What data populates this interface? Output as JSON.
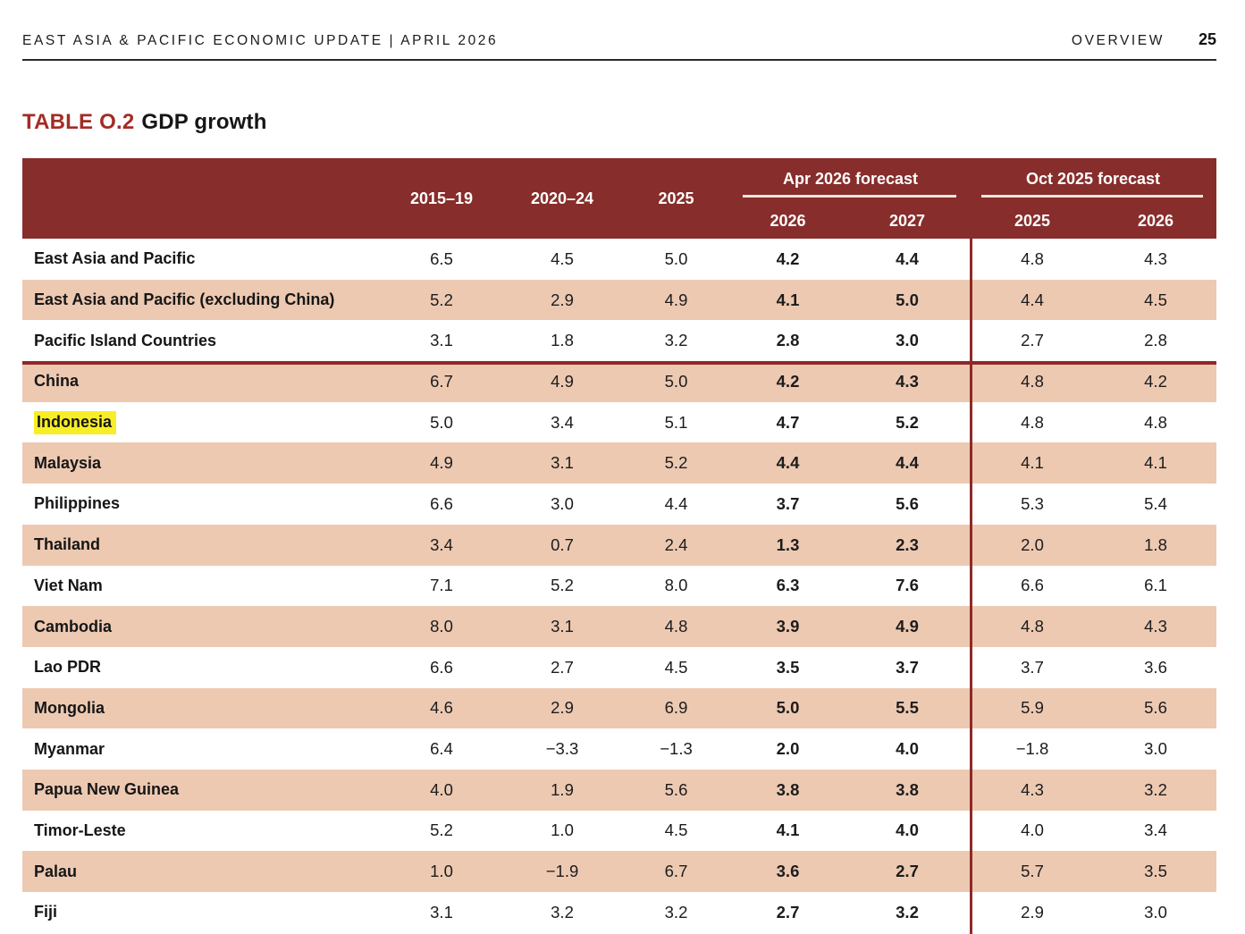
{
  "page_header": {
    "left_title": "EAST ASIA & PACIFIC ECONOMIC UPDATE | APRIL 2026",
    "section": "OVERVIEW",
    "page_number": "25"
  },
  "table_title": {
    "label": "TABLE O.2",
    "title": "GDP growth"
  },
  "colors": {
    "header_bg": "#872d2b",
    "row_shaded": "#edc9b2",
    "divider_red": "#8e2a26",
    "title_red": "#a32c25",
    "highlight_yellow": "#f8ee26",
    "header_text": "#ffffff",
    "underline": "#f3e6de"
  },
  "table": {
    "column_headers": [
      "2015–19",
      "2020–24",
      "2025"
    ],
    "groups": [
      {
        "label": "Apr 2026 forecast",
        "years": [
          "2026",
          "2027"
        ]
      },
      {
        "label": "Oct 2025 forecast",
        "years": [
          "2025",
          "2026"
        ]
      }
    ],
    "bold_value_columns": [
      3,
      4
    ],
    "rows": [
      {
        "name": "East Asia and Pacific",
        "highlight": false,
        "values": [
          "6.5",
          "4.5",
          "5.0",
          "4.2",
          "4.4",
          "4.8",
          "4.3"
        ]
      },
      {
        "name": "East Asia and Pacific (excluding China)",
        "highlight": false,
        "values": [
          "5.2",
          "2.9",
          "4.9",
          "4.1",
          "5.0",
          "4.4",
          "4.5"
        ]
      },
      {
        "name": "Pacific Island Countries",
        "highlight": false,
        "values": [
          "3.1",
          "1.8",
          "3.2",
          "2.8",
          "3.0",
          "2.7",
          "2.8"
        ]
      },
      {
        "name": "China",
        "highlight": false,
        "values": [
          "6.7",
          "4.9",
          "5.0",
          "4.2",
          "4.3",
          "4.8",
          "4.2"
        ]
      },
      {
        "name": "Indonesia",
        "highlight": true,
        "values": [
          "5.0",
          "3.4",
          "5.1",
          "4.7",
          "5.2",
          "4.8",
          "4.8"
        ]
      },
      {
        "name": "Malaysia",
        "highlight": false,
        "values": [
          "4.9",
          "3.1",
          "5.2",
          "4.4",
          "4.4",
          "4.1",
          "4.1"
        ]
      },
      {
        "name": "Philippines",
        "highlight": false,
        "values": [
          "6.6",
          "3.0",
          "4.4",
          "3.7",
          "5.6",
          "5.3",
          "5.4"
        ]
      },
      {
        "name": "Thailand",
        "highlight": false,
        "values": [
          "3.4",
          "0.7",
          "2.4",
          "1.3",
          "2.3",
          "2.0",
          "1.8"
        ]
      },
      {
        "name": "Viet Nam",
        "highlight": false,
        "values": [
          "7.1",
          "5.2",
          "8.0",
          "6.3",
          "7.6",
          "6.6",
          "6.1"
        ]
      },
      {
        "name": "Cambodia",
        "highlight": false,
        "values": [
          "8.0",
          "3.1",
          "4.8",
          "3.9",
          "4.9",
          "4.8",
          "4.3"
        ]
      },
      {
        "name": "Lao PDR",
        "highlight": false,
        "values": [
          "6.6",
          "2.7",
          "4.5",
          "3.5",
          "3.7",
          "3.7",
          "3.6"
        ]
      },
      {
        "name": "Mongolia",
        "highlight": false,
        "values": [
          "4.6",
          "2.9",
          "6.9",
          "5.0",
          "5.5",
          "5.9",
          "5.6"
        ]
      },
      {
        "name": "Myanmar",
        "highlight": false,
        "values": [
          "6.4",
          "−3.3",
          "−1.3",
          "2.0",
          "4.0",
          "−1.8",
          "3.0"
        ]
      },
      {
        "name": "Papua New Guinea",
        "highlight": false,
        "values": [
          "4.0",
          "1.9",
          "5.6",
          "3.8",
          "3.8",
          "4.3",
          "3.2"
        ]
      },
      {
        "name": "Timor-Leste",
        "highlight": false,
        "values": [
          "5.2",
          "1.0",
          "4.5",
          "4.1",
          "4.0",
          "4.0",
          "3.4"
        ]
      },
      {
        "name": "Palau",
        "highlight": false,
        "values": [
          "1.0",
          "−1.9",
          "6.7",
          "3.6",
          "2.7",
          "5.7",
          "3.5"
        ]
      },
      {
        "name": "Fiji",
        "highlight": false,
        "values": [
          "3.1",
          "3.2",
          "3.2",
          "2.7",
          "3.2",
          "2.9",
          "3.0"
        ]
      }
    ]
  }
}
